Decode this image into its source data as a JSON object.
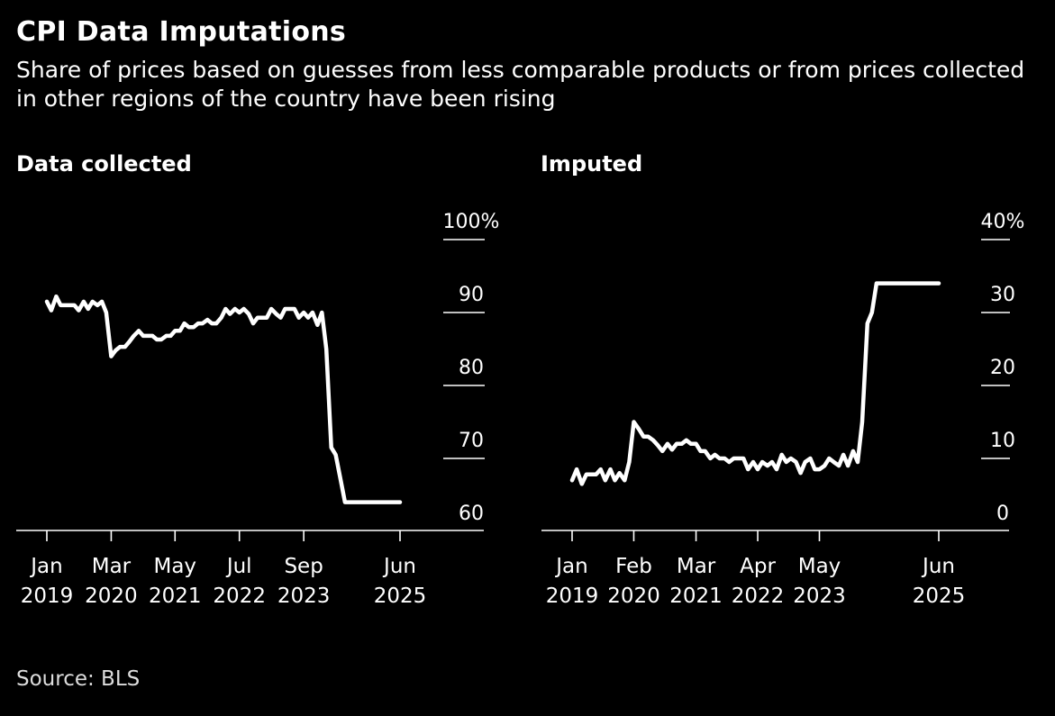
{
  "title": "CPI Data Imputations",
  "subtitle": "Share of prices based on guesses from less comparable products or from prices collected in other regions of the country have been rising",
  "source": "Source: BLS",
  "colors": {
    "background": "#000000",
    "text": "#ffffff",
    "line": "#ffffff",
    "axis": "#ffffff"
  },
  "chart_data": [
    {
      "type": "line",
      "title": "Data collected",
      "ylim": [
        60,
        100
      ],
      "y_ticks": [
        {
          "value": 100,
          "label": "100%"
        },
        {
          "value": 90,
          "label": "90"
        },
        {
          "value": 80,
          "label": "80"
        },
        {
          "value": 70,
          "label": "70"
        },
        {
          "value": 60,
          "label": "60"
        }
      ],
      "x_range": [
        2019.0,
        2025.42
      ],
      "x_ticks": [
        {
          "x": 2019.0,
          "line1": "Jan",
          "line2": "2019"
        },
        {
          "x": 2020.17,
          "line1": "Mar",
          "line2": "2020"
        },
        {
          "x": 2021.33,
          "line1": "May",
          "line2": "2021"
        },
        {
          "x": 2022.5,
          "line1": "Jul",
          "line2": "2022"
        },
        {
          "x": 2023.67,
          "line1": "Sep",
          "line2": "2023"
        },
        {
          "x": 2025.42,
          "line1": "Jun",
          "line2": "2025"
        }
      ],
      "series": [
        {
          "x": [
            2019.0,
            2019.08,
            2019.17,
            2019.25,
            2019.33,
            2019.42,
            2019.5,
            2019.58,
            2019.67,
            2019.75,
            2019.83,
            2019.92,
            2020.0,
            2020.08,
            2020.17,
            2020.25,
            2020.33,
            2020.42,
            2020.5,
            2020.58,
            2020.67,
            2020.75,
            2020.83,
            2020.92,
            2021.0,
            2021.08,
            2021.17,
            2021.25,
            2021.33,
            2021.42,
            2021.5,
            2021.58,
            2021.67,
            2021.75,
            2021.83,
            2021.92,
            2022.0,
            2022.08,
            2022.17,
            2022.25,
            2022.33,
            2022.42,
            2022.5,
            2022.58,
            2022.67,
            2022.75,
            2022.83,
            2022.92,
            2023.0,
            2023.08,
            2023.17,
            2023.25,
            2023.33,
            2023.42,
            2023.5,
            2023.58,
            2023.67,
            2023.75,
            2023.83,
            2023.92,
            2024.0,
            2024.08,
            2024.17,
            2024.25,
            2024.33,
            2024.42,
            2024.5,
            2024.58,
            2024.67,
            2024.75,
            2024.83,
            2024.92,
            2025.0,
            2025.08,
            2025.17,
            2025.25,
            2025.33,
            2025.42
          ],
          "values": [
            91.5,
            90.3,
            92.2,
            91.0,
            91.0,
            91.0,
            91.0,
            90.3,
            91.5,
            90.5,
            91.5,
            91.0,
            91.5,
            90.0,
            84.0,
            84.8,
            85.3,
            85.3,
            86.0,
            86.8,
            87.5,
            86.8,
            86.8,
            86.8,
            86.3,
            86.3,
            86.8,
            86.8,
            87.5,
            87.5,
            88.5,
            88.0,
            88.0,
            88.5,
            88.5,
            89.0,
            88.5,
            88.5,
            89.3,
            90.5,
            89.8,
            90.5,
            90.0,
            90.5,
            89.8,
            88.5,
            89.3,
            89.3,
            89.3,
            90.5,
            89.8,
            89.3,
            90.5,
            90.5,
            90.5,
            89.3,
            90.0,
            89.3,
            90.0,
            88.3,
            90.0,
            85.0,
            71.5,
            70.5,
            67.5,
            64.0,
            64.0,
            64.0,
            64.0,
            64.0,
            64.0,
            64.0,
            64.0,
            64.0,
            64.0,
            64.0,
            64.0,
            64.0
          ]
        }
      ]
    },
    {
      "type": "line",
      "title": "Imputed",
      "ylim": [
        0,
        40
      ],
      "y_ticks": [
        {
          "value": 40,
          "label": "40%"
        },
        {
          "value": 30,
          "label": "30"
        },
        {
          "value": 20,
          "label": "20"
        },
        {
          "value": 10,
          "label": "10"
        },
        {
          "value": 0,
          "label": "0"
        }
      ],
      "x_range": [
        2019.0,
        2025.42
      ],
      "x_ticks": [
        {
          "x": 2019.0,
          "line1": "Jan",
          "line2": "2019"
        },
        {
          "x": 2020.08,
          "line1": "Feb",
          "line2": "2020"
        },
        {
          "x": 2021.17,
          "line1": "Mar",
          "line2": "2021"
        },
        {
          "x": 2022.25,
          "line1": "Apr",
          "line2": "2022"
        },
        {
          "x": 2023.33,
          "line1": "May",
          "line2": "2023"
        },
        {
          "x": 2025.42,
          "line1": "Jun",
          "line2": "2025"
        }
      ],
      "series": [
        {
          "x": [
            2019.0,
            2019.08,
            2019.17,
            2019.25,
            2019.33,
            2019.42,
            2019.5,
            2019.58,
            2019.67,
            2019.75,
            2019.83,
            2019.92,
            2020.0,
            2020.08,
            2020.17,
            2020.25,
            2020.33,
            2020.42,
            2020.5,
            2020.58,
            2020.67,
            2020.75,
            2020.83,
            2020.92,
            2021.0,
            2021.08,
            2021.17,
            2021.25,
            2021.33,
            2021.42,
            2021.5,
            2021.58,
            2021.67,
            2021.75,
            2021.83,
            2021.92,
            2022.0,
            2022.08,
            2022.17,
            2022.25,
            2022.33,
            2022.42,
            2022.5,
            2022.58,
            2022.67,
            2022.75,
            2022.83,
            2022.92,
            2023.0,
            2023.08,
            2023.17,
            2023.25,
            2023.33,
            2023.42,
            2023.5,
            2023.58,
            2023.67,
            2023.75,
            2023.83,
            2023.92,
            2024.0,
            2024.08,
            2024.17,
            2024.25,
            2024.33,
            2024.42,
            2024.5,
            2024.58,
            2024.67,
            2024.75,
            2024.83,
            2024.92,
            2025.0,
            2025.08,
            2025.17,
            2025.25,
            2025.33,
            2025.42
          ],
          "values": [
            7.0,
            8.5,
            6.5,
            7.8,
            7.8,
            7.8,
            8.5,
            7.0,
            8.5,
            7.0,
            8.0,
            7.0,
            9.5,
            15.0,
            14.0,
            13.0,
            13.0,
            12.5,
            11.8,
            11.0,
            12.0,
            11.2,
            12.0,
            12.0,
            12.5,
            12.0,
            12.0,
            11.0,
            11.0,
            10.0,
            10.5,
            10.0,
            10.0,
            9.5,
            10.0,
            10.0,
            10.0,
            8.5,
            9.5,
            8.5,
            9.5,
            9.0,
            9.5,
            8.5,
            10.5,
            9.5,
            10.0,
            9.5,
            8.0,
            9.5,
            10.0,
            8.5,
            8.5,
            9.0,
            10.0,
            9.5,
            9.0,
            10.5,
            9.0,
            11.0,
            9.5,
            15.0,
            28.5,
            30.0,
            34.0,
            34.0,
            34.0,
            34.0,
            34.0,
            34.0,
            34.0,
            34.0,
            34.0,
            34.0,
            34.0,
            34.0,
            34.0,
            34.0
          ]
        }
      ]
    }
  ]
}
